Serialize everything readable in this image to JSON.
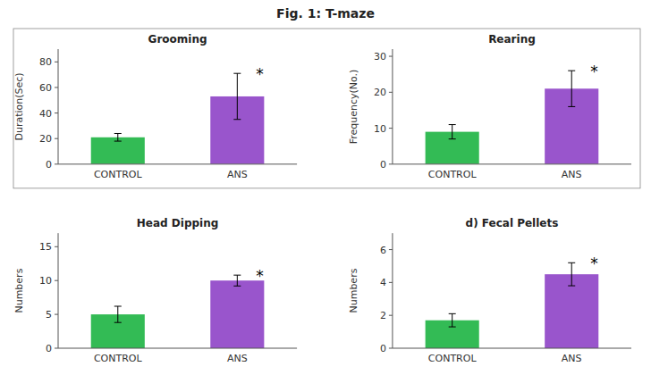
{
  "title": "Fig. 1: T-maze",
  "chart_data": [
    {
      "type": "bar",
      "title": "Grooming",
      "ylabel": "Duration(Sec)",
      "categories": [
        "CONTROL",
        "ANS"
      ],
      "values": [
        21,
        53
      ],
      "errors": [
        3,
        18
      ],
      "colors": [
        "#33bb55",
        "#9955cc"
      ],
      "ylim": [
        0,
        90
      ],
      "yticks": [
        0,
        20,
        40,
        60,
        80
      ],
      "grid": false,
      "annotations": [
        {
          "text": "*",
          "category": "ANS"
        }
      ]
    },
    {
      "type": "bar",
      "title": "Rearing",
      "ylabel": "Frequency(No.)",
      "categories": [
        "CONTROL",
        "ANS"
      ],
      "values": [
        9,
        21
      ],
      "errors": [
        2,
        5
      ],
      "colors": [
        "#33bb55",
        "#9955cc"
      ],
      "ylim": [
        0,
        32
      ],
      "yticks": [
        0,
        10,
        20,
        30
      ],
      "grid": false,
      "annotations": [
        {
          "text": "*",
          "category": "ANS"
        }
      ]
    },
    {
      "type": "bar",
      "title": "Head Dipping",
      "ylabel": "Numbers",
      "categories": [
        "CONTROL",
        "ANS"
      ],
      "values": [
        5,
        10
      ],
      "errors": [
        1.2,
        0.8
      ],
      "colors": [
        "#33bb55",
        "#9955cc"
      ],
      "ylim": [
        0,
        17
      ],
      "yticks": [
        0,
        5,
        10,
        15
      ],
      "grid": false,
      "annotations": [
        {
          "text": "*",
          "category": "ANS"
        }
      ]
    },
    {
      "type": "bar",
      "title": "d) Fecal Pellets",
      "ylabel": "Numbers",
      "categories": [
        "CONTROL",
        "ANS"
      ],
      "values": [
        1.7,
        4.5
      ],
      "errors": [
        0.4,
        0.7
      ],
      "colors": [
        "#33bb55",
        "#9955cc"
      ],
      "ylim": [
        0,
        7
      ],
      "yticks": [
        0,
        2,
        4,
        6
      ],
      "grid": false,
      "annotations": [
        {
          "text": "*",
          "category": "ANS"
        }
      ]
    }
  ]
}
